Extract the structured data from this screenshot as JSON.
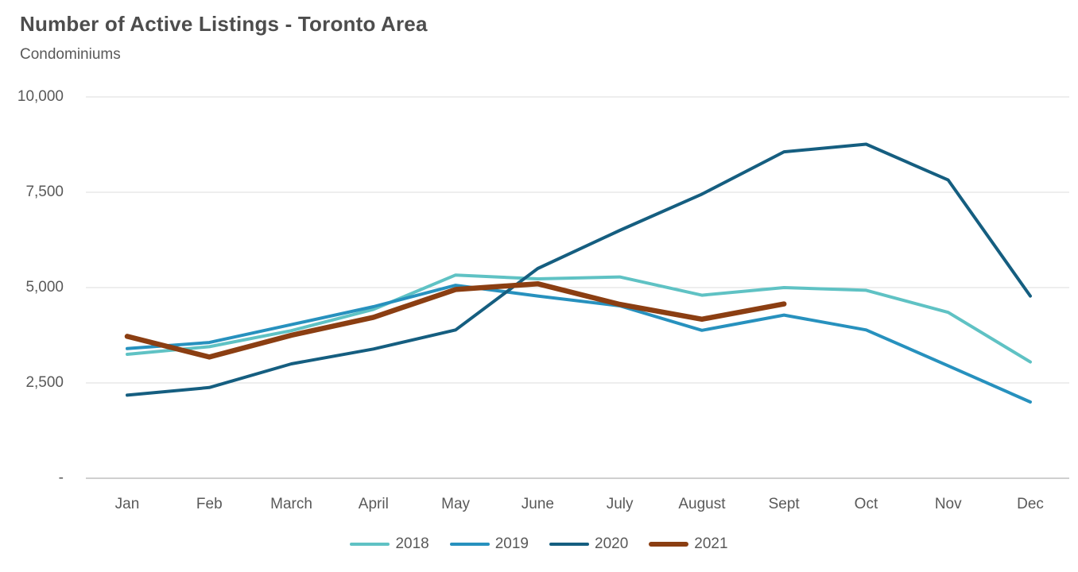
{
  "page": {
    "title": "Number of Active Listings - Toronto Area",
    "subtitle": "Condominiums"
  },
  "colors": {
    "title_text": "#4d4d4d",
    "axis_text": "#595959",
    "gridline": "#dcdcdc",
    "zero_axis_line": "#bfbfbf",
    "background": "#ffffff"
  },
  "chart_data": {
    "type": "line",
    "title": "Number of Active Listings - Toronto Area",
    "subtitle": "Condominiums",
    "categories": [
      "Jan",
      "Feb",
      "March",
      "April",
      "May",
      "June",
      "July",
      "August",
      "Sept",
      "Oct",
      "Nov",
      "Dec"
    ],
    "xlabel": "",
    "ylabel": "",
    "ylim": [
      0,
      10000
    ],
    "grid": "horizontal",
    "legend_position": "bottom",
    "yticks": [
      {
        "value": 0,
        "label": "-"
      },
      {
        "value": 2500,
        "label": "2,500"
      },
      {
        "value": 5000,
        "label": "5,000"
      },
      {
        "value": 7500,
        "label": "7,500"
      },
      {
        "value": 10000,
        "label": "10,000"
      }
    ],
    "series": [
      {
        "name": "2018",
        "color": "#5fc2c4",
        "stroke_width": 4,
        "values": [
          3250,
          3450,
          3870,
          4430,
          5330,
          5230,
          5280,
          4800,
          5000,
          4930,
          4350,
          3050
        ]
      },
      {
        "name": "2019",
        "color": "#2791be",
        "stroke_width": 4,
        "values": [
          3400,
          3560,
          4030,
          4500,
          5060,
          4780,
          4520,
          3880,
          4280,
          3890,
          2950,
          2000
        ]
      },
      {
        "name": "2020",
        "color": "#155e80",
        "stroke_width": 4,
        "values": [
          2180,
          2380,
          3000,
          3390,
          3890,
          5500,
          6500,
          7450,
          8560,
          8760,
          7820,
          4780
        ]
      },
      {
        "name": "2021",
        "color": "#8b3e12",
        "stroke_width": 6.5,
        "values": [
          3720,
          3180,
          3750,
          4220,
          4950,
          5100,
          4560,
          4170,
          4570,
          null,
          null,
          null
        ]
      }
    ]
  }
}
